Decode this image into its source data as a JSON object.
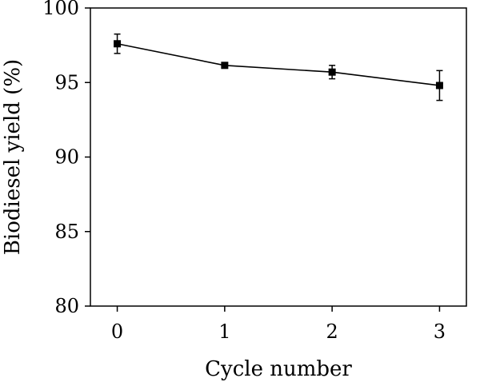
{
  "chart_data": {
    "type": "line",
    "xlabel": "Cycle number",
    "ylabel": "Biodiesel yield (%)",
    "xlim": [
      -0.25,
      3.25
    ],
    "ylim": [
      80,
      100
    ],
    "xticks": [
      0,
      1,
      2,
      3
    ],
    "yticks": [
      80,
      85,
      90,
      95,
      100
    ],
    "grid": false,
    "series": [
      {
        "x": [
          0,
          1,
          2,
          3
        ],
        "values": [
          97.6,
          96.15,
          95.7,
          94.8
        ],
        "error": [
          0.65,
          0.15,
          0.45,
          1.0
        ],
        "marker": "square",
        "color": "#000000"
      }
    ]
  }
}
